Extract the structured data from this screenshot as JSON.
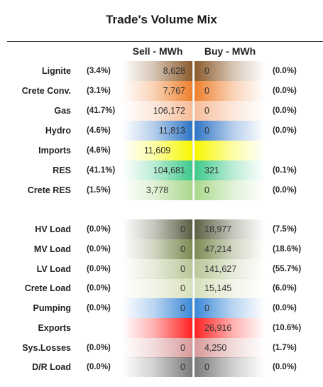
{
  "title": "Trade's Volume Mix",
  "headers": {
    "sell": "Sell - MWh",
    "buy": "Buy - MWh"
  },
  "rows": [
    {
      "label": "Lignite",
      "sell_pct": "(3.4%)",
      "sell": "8,628",
      "buy": "0",
      "buy_pct": "(0.0%)",
      "sell_color": "#8b5a2b",
      "buy_color": "#8b5a2b"
    },
    {
      "label": "Crete Conv.",
      "sell_pct": "(3.1%)",
      "sell": "7,767",
      "buy": "0",
      "buy_pct": "(0.0%)",
      "sell_color": "#ee7f2d",
      "buy_color": "#ee7f2d"
    },
    {
      "label": "Gas",
      "sell_pct": "(41.7%)",
      "sell": "106,172",
      "buy": "0",
      "buy_pct": "(0.0%)",
      "sell_color": "#f6bc99",
      "buy_color": "#f6bc99"
    },
    {
      "label": "Hydro",
      "sell_pct": "(4.6%)",
      "sell": "11,813",
      "buy": "0",
      "buy_pct": "(0.0%)",
      "sell_color": "#2e75c6",
      "buy_color": "#2e75c6"
    },
    {
      "label": "Imports",
      "sell_pct": "(4.6%)",
      "sell": "11,609",
      "buy": "",
      "buy_pct": "",
      "sell_color": "#f7f700",
      "buy_color": "#f7f700"
    },
    {
      "label": "RES",
      "sell_pct": "(41.1%)",
      "sell": "104,681",
      "buy": "321",
      "buy_pct": "(0.1%)",
      "sell_color": "#3ec98a",
      "buy_color": "#3ec98a"
    },
    {
      "label": "Crete RES",
      "sell_pct": "(1.5%)",
      "sell": "3,778",
      "buy": "0",
      "buy_pct": "(0.0%)",
      "sell_color": "#a9d88b",
      "buy_color": "#a9d88b"
    },
    {
      "label": "HV Load",
      "sell_pct": "(0.0%)",
      "sell": "0",
      "buy": "18,977",
      "buy_pct": "(7.5%)",
      "sell_color": "#5a5f43",
      "buy_color": "#5a5f43"
    },
    {
      "label": "MV Load",
      "sell_pct": "(0.0%)",
      "sell": "0",
      "buy": "47,214",
      "buy_pct": "(18.6%)",
      "sell_color": "#7c8a52",
      "buy_color": "#7c8a52"
    },
    {
      "label": "LV Load",
      "sell_pct": "(0.0%)",
      "sell": "0",
      "buy": "141,627",
      "buy_pct": "(55.7%)",
      "sell_color": "#b9c698",
      "buy_color": "#b9c698"
    },
    {
      "label": "Crete Load",
      "sell_pct": "(0.0%)",
      "sell": "0",
      "buy": "15,145",
      "buy_pct": "(6.0%)",
      "sell_color": "#d7e0bc",
      "buy_color": "#d7e0bc"
    },
    {
      "label": "Pumping",
      "sell_pct": "(0.0%)",
      "sell": "0",
      "buy": "0",
      "buy_pct": "(0.0%)",
      "sell_color": "#3b88d8",
      "buy_color": "#3b88d8"
    },
    {
      "label": "Exports",
      "sell_pct": "",
      "sell": "",
      "buy": "26,916",
      "buy_pct": "(10.6%)",
      "sell_color": "#ff2020",
      "buy_color": "#ff2020"
    },
    {
      "label": "Sys.Losses",
      "sell_pct": "(0.0%)",
      "sell": "0",
      "buy": "4,250",
      "buy_pct": "(1.7%)",
      "sell_color": "#d99a9a",
      "buy_color": "#d99a9a"
    },
    {
      "label": "D/R Load",
      "sell_pct": "(0.0%)",
      "sell": "0",
      "buy": "0",
      "buy_pct": "(0.0%)",
      "sell_color": "#7a7a7a",
      "buy_color": "#7a7a7a"
    }
  ]
}
